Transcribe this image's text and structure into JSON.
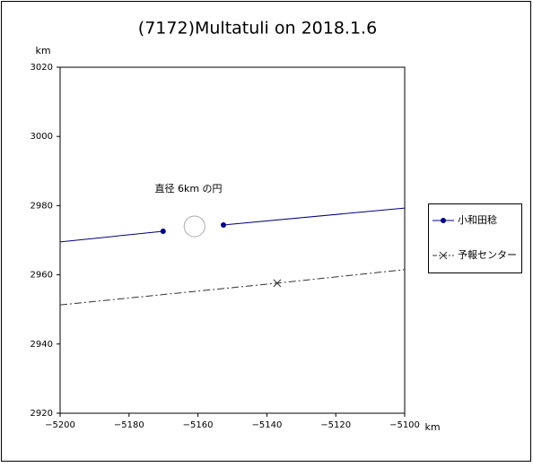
{
  "chart_data": {
    "type": "line",
    "title": "(7172)Multatuli on 2018.1.6",
    "x_label": "km",
    "y_label": "km",
    "xlim": [
      -5200,
      -5100
    ],
    "ylim": [
      2920,
      3020
    ],
    "xticks": [
      {
        "value": -5200,
        "label": "−5200"
      },
      {
        "value": -5180,
        "label": "−5180"
      },
      {
        "value": -5160,
        "label": "−5160"
      },
      {
        "value": -5140,
        "label": "−5140"
      },
      {
        "value": -5120,
        "label": "−5120"
      },
      {
        "value": -5100,
        "label": "−5100"
      }
    ],
    "yticks": [
      2920,
      2940,
      2960,
      2980,
      3000,
      3020
    ],
    "series": [
      {
        "name": "小和田稔",
        "color": "#000080",
        "dash": "none",
        "marker": "dot",
        "x": [
          -5200,
          -5170.1,
          -5161,
          -5152.6,
          -5100
        ],
        "values": [
          2969.5,
          2972.6,
          null,
          2974.4,
          2979.3
        ]
      },
      {
        "name": "予報センター",
        "color": "#333333",
        "dash": "8 3 2 3",
        "marker": "cross",
        "x": [
          -5200,
          -5137.0,
          -5100
        ],
        "values": [
          2951.3,
          2957.6,
          2961.5
        ]
      }
    ],
    "circle": {
      "x": -5161,
      "y": 2974,
      "diameter": 6,
      "label": "直径 6km の円"
    }
  }
}
